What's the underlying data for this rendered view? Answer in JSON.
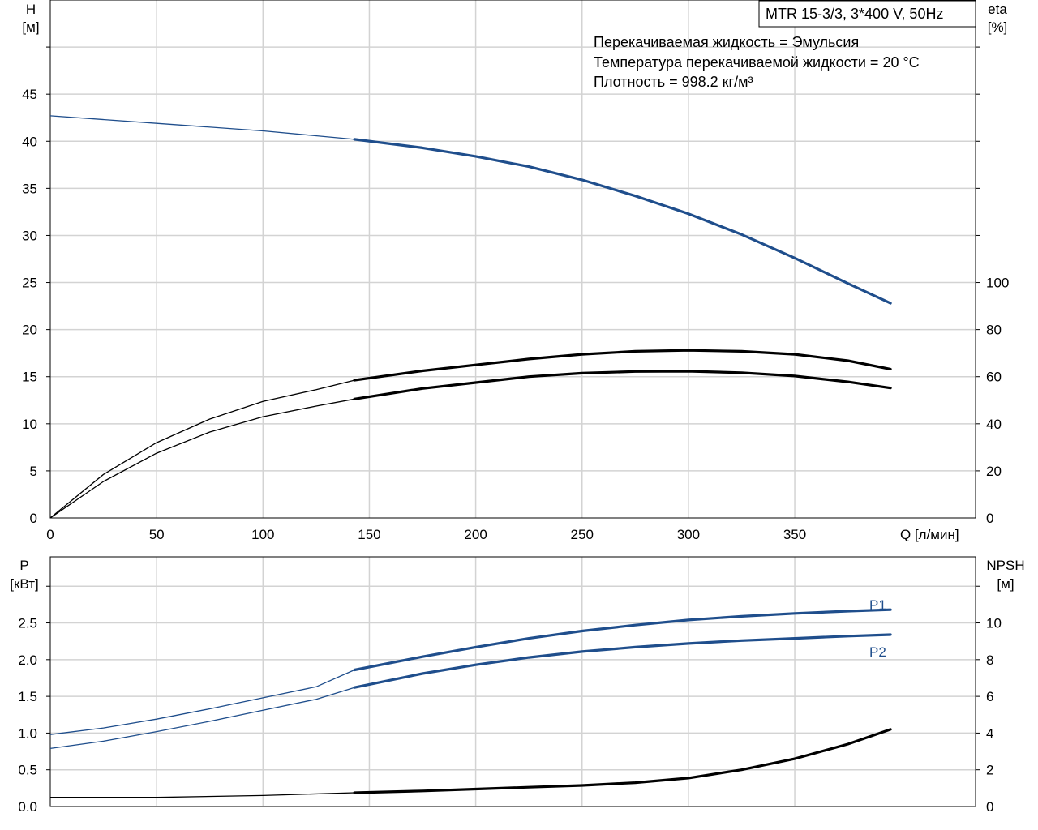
{
  "chart_data": [
    {
      "type": "line",
      "title": "MTR 15-3/3, 3*400 V, 50Hz",
      "notes": [
        "Перекачиваемая жидкость = Эмульсия",
        "Температура перекачиваемой жидкости = 20 °C",
        "Плотность = 998.2 кг/м³"
      ],
      "xlabel": "Q [л/мин]",
      "xlim": [
        0,
        435
      ],
      "x_ticks": [
        0,
        50,
        100,
        150,
        200,
        250,
        300,
        350
      ],
      "ylabel_left": [
        "H",
        "[м]"
      ],
      "ylim_left": [
        0,
        55
      ],
      "y_ticks_left": [
        0,
        5,
        10,
        15,
        20,
        25,
        30,
        35,
        40,
        45
      ],
      "ylabel_right": [
        "eta",
        "[%]"
      ],
      "ylim_right": [
        0,
        220
      ],
      "y_ticks_right": [
        0,
        20,
        40,
        60,
        80,
        100
      ],
      "grid": true,
      "series": [
        {
          "axis": "left",
          "color": "#1f4e8c",
          "x": [
            0,
            50,
            100,
            143,
            175,
            200,
            225,
            250,
            275,
            300,
            325,
            350,
            375,
            395
          ],
          "y": [
            42.7,
            41.9,
            41.1,
            40.2,
            39.3,
            38.4,
            37.3,
            35.9,
            34.2,
            32.3,
            30.1,
            27.6,
            24.9,
            22.8
          ],
          "bold_from": 143
        },
        {
          "axis": "right",
          "color": "#000000",
          "x": [
            0,
            25,
            50,
            75,
            100,
            125,
            143,
            175,
            200,
            225,
            250,
            275,
            300,
            325,
            350,
            375,
            395
          ],
          "y": [
            0,
            18.5,
            32,
            42,
            49.5,
            54.5,
            58.5,
            62.5,
            65,
            67.5,
            69.5,
            70.8,
            71.2,
            70.8,
            69.5,
            66.8,
            63.2
          ],
          "bold_from": 143
        },
        {
          "axis": "right",
          "color": "#000000",
          "x": [
            0,
            25,
            50,
            75,
            100,
            125,
            143,
            175,
            200,
            225,
            250,
            275,
            300,
            325,
            350,
            375,
            395
          ],
          "y": [
            0,
            15.5,
            27.5,
            36.5,
            43,
            47.5,
            50.5,
            55,
            57.5,
            60,
            61.5,
            62.2,
            62.3,
            61.7,
            60.3,
            57.8,
            55.2
          ],
          "bold_from": 143
        }
      ]
    },
    {
      "type": "line",
      "xlim": [
        0,
        435
      ],
      "ylabel_left": [
        "P",
        "[кВт]"
      ],
      "ylim_left": [
        0,
        3.4
      ],
      "y_ticks_left": [
        "0.0",
        "0.5",
        "1.0",
        "1.5",
        "2.0",
        "2.5"
      ],
      "ylabel_right": [
        "NPSH",
        "[м]"
      ],
      "ylim_right": [
        0,
        13.6
      ],
      "y_ticks_right": [
        0,
        2,
        4,
        6,
        8,
        10
      ],
      "grid": true,
      "series": [
        {
          "name": "P1",
          "axis": "left",
          "color": "#1f4e8c",
          "x": [
            0,
            25,
            50,
            75,
            100,
            125,
            143,
            175,
            200,
            225,
            250,
            275,
            300,
            325,
            350,
            375,
            395
          ],
          "y": [
            0.98,
            1.07,
            1.19,
            1.33,
            1.48,
            1.63,
            1.86,
            2.04,
            2.17,
            2.29,
            2.39,
            2.47,
            2.54,
            2.59,
            2.63,
            2.66,
            2.68
          ],
          "bold_from": 143
        },
        {
          "name": "P2",
          "axis": "left",
          "color": "#1f4e8c",
          "x": [
            0,
            25,
            50,
            75,
            100,
            125,
            143,
            175,
            200,
            225,
            250,
            275,
            300,
            325,
            350,
            375,
            395
          ],
          "y": [
            0.79,
            0.89,
            1.02,
            1.16,
            1.31,
            1.46,
            1.62,
            1.81,
            1.93,
            2.03,
            2.11,
            2.17,
            2.22,
            2.26,
            2.29,
            2.32,
            2.34
          ],
          "bold_from": 143
        },
        {
          "axis": "right",
          "color": "#000000",
          "x": [
            0,
            50,
            100,
            143,
            175,
            200,
            225,
            250,
            275,
            300,
            325,
            350,
            375,
            395
          ],
          "y": [
            0.5,
            0.5,
            0.6,
            0.75,
            0.85,
            0.95,
            1.05,
            1.15,
            1.3,
            1.55,
            2.0,
            2.6,
            3.4,
            4.2
          ],
          "bold_from": 143
        }
      ]
    }
  ]
}
